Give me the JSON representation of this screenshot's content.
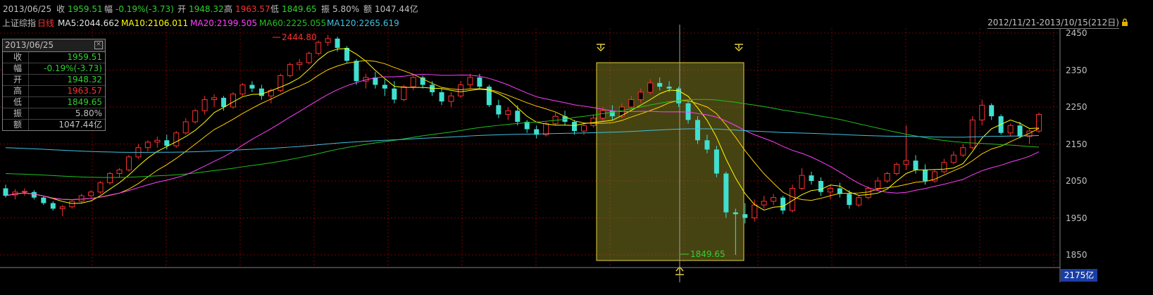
{
  "header": {
    "date": "2013/06/25",
    "close_label": "收",
    "close_value": "1959.51",
    "change_label": "幅",
    "change_value": "-0.19%(-3.73)",
    "open_label": "开",
    "open_value": "1948.32",
    "high_label": "高",
    "high_value": "1963.57",
    "low_label": "低",
    "low_value": "1849.65",
    "amp_label": "振",
    "amp_value": "5.80%",
    "amount_label": "额",
    "amount_value": "1047.44亿"
  },
  "indicator_line": {
    "name": "上证综指",
    "period": "日线",
    "ma5": "MA5:2044.662",
    "ma10": "MA10:2106.011",
    "ma20": "MA20:2199.505",
    "ma60": "MA60:2225.055",
    "ma120": "MA120:2265.619",
    "date_range": "2012/11/21-2013/10/15(212日)"
  },
  "info_box": {
    "title": "2013/06/25",
    "rows": [
      {
        "k": "收",
        "v": "1959.51",
        "color": "#30d030"
      },
      {
        "k": "幅",
        "v": "-0.19%(-3.73)",
        "color": "#30d030"
      },
      {
        "k": "开",
        "v": "1948.32",
        "color": "#30d030"
      },
      {
        "k": "高",
        "v": "1963.57",
        "color": "#ff3030"
      },
      {
        "k": "低",
        "v": "1849.65",
        "color": "#30d030"
      },
      {
        "k": "振",
        "v": "5.80%",
        "color": "#c0c0c0"
      },
      {
        "k": "额",
        "v": "1047.44亿",
        "color": "#c0c0c0"
      }
    ]
  },
  "annotations": {
    "high": "2444.80",
    "low": "1849.65",
    "volume": "2175亿"
  },
  "colors": {
    "up": "#ff3030",
    "down": "#40e0d0",
    "ma5": "#ffffff",
    "ma10": "#ffff00",
    "ma20": "#ff40ff",
    "ma60": "#20c020",
    "ma120": "#40c0e0",
    "highlight": "#807a20"
  },
  "chart_data": {
    "type": "candlestick",
    "y_ticks": [
      1850,
      1950,
      2050,
      2150,
      2250,
      2350,
      2450
    ],
    "ylim": [
      1800,
      2480
    ],
    "candles_ohlc": [
      [
        2030,
        2040,
        2005,
        2010
      ],
      [
        2012,
        2028,
        2000,
        2020
      ],
      [
        2020,
        2030,
        2010,
        2022
      ],
      [
        2020,
        2025,
        2000,
        2005
      ],
      [
        2005,
        2010,
        1985,
        1990
      ],
      [
        1990,
        1995,
        1970,
        1975
      ],
      [
        1975,
        1985,
        1955,
        1980
      ],
      [
        1980,
        2000,
        1975,
        1995
      ],
      [
        1995,
        2015,
        1990,
        2010
      ],
      [
        2010,
        2025,
        2005,
        2020
      ],
      [
        2020,
        2050,
        2015,
        2045
      ],
      [
        2045,
        2075,
        2040,
        2070
      ],
      [
        2070,
        2085,
        2060,
        2080
      ],
      [
        2080,
        2120,
        2075,
        2115
      ],
      [
        2115,
        2150,
        2110,
        2140
      ],
      [
        2140,
        2160,
        2130,
        2155
      ],
      [
        2155,
        2170,
        2140,
        2160
      ],
      [
        2160,
        2175,
        2135,
        2145
      ],
      [
        2145,
        2185,
        2140,
        2180
      ],
      [
        2180,
        2220,
        2175,
        2210
      ],
      [
        2210,
        2245,
        2205,
        2240
      ],
      [
        2240,
        2280,
        2230,
        2270
      ],
      [
        2270,
        2285,
        2250,
        2275
      ],
      [
        2275,
        2280,
        2240,
        2250
      ],
      [
        2250,
        2290,
        2245,
        2285
      ],
      [
        2285,
        2315,
        2280,
        2310
      ],
      [
        2310,
        2320,
        2290,
        2300
      ],
      [
        2300,
        2310,
        2270,
        2280
      ],
      [
        2280,
        2300,
        2260,
        2295
      ],
      [
        2295,
        2340,
        2290,
        2335
      ],
      [
        2335,
        2370,
        2330,
        2365
      ],
      [
        2365,
        2380,
        2350,
        2370
      ],
      [
        2370,
        2400,
        2365,
        2395
      ],
      [
        2395,
        2430,
        2390,
        2425
      ],
      [
        2425,
        2445,
        2415,
        2435
      ],
      [
        2435,
        2440,
        2400,
        2410
      ],
      [
        2410,
        2415,
        2370,
        2375
      ],
      [
        2375,
        2380,
        2310,
        2320
      ],
      [
        2320,
        2340,
        2300,
        2330
      ],
      [
        2330,
        2345,
        2300,
        2310
      ],
      [
        2310,
        2325,
        2280,
        2300
      ],
      [
        2300,
        2320,
        2260,
        2270
      ],
      [
        2270,
        2310,
        2265,
        2305
      ],
      [
        2305,
        2340,
        2295,
        2330
      ],
      [
        2330,
        2335,
        2300,
        2310
      ],
      [
        2310,
        2320,
        2280,
        2290
      ],
      [
        2290,
        2300,
        2255,
        2265
      ],
      [
        2265,
        2290,
        2250,
        2280
      ],
      [
        2280,
        2320,
        2275,
        2310
      ],
      [
        2310,
        2340,
        2300,
        2330
      ],
      [
        2330,
        2340,
        2300,
        2305
      ],
      [
        2305,
        2310,
        2250,
        2255
      ],
      [
        2255,
        2270,
        2220,
        2230
      ],
      [
        2230,
        2250,
        2215,
        2240
      ],
      [
        2240,
        2255,
        2200,
        2210
      ],
      [
        2210,
        2215,
        2180,
        2190
      ],
      [
        2190,
        2200,
        2165,
        2175
      ],
      [
        2175,
        2210,
        2170,
        2205
      ],
      [
        2205,
        2235,
        2200,
        2225
      ],
      [
        2225,
        2240,
        2200,
        2210
      ],
      [
        2210,
        2215,
        2175,
        2185
      ],
      [
        2185,
        2205,
        2175,
        2200
      ],
      [
        2200,
        2230,
        2195,
        2220
      ],
      [
        2220,
        2250,
        2210,
        2240
      ],
      [
        2240,
        2255,
        2215,
        2225
      ],
      [
        2225,
        2260,
        2220,
        2250
      ],
      [
        2250,
        2280,
        2245,
        2270
      ],
      [
        2270,
        2300,
        2260,
        2290
      ],
      [
        2290,
        2325,
        2285,
        2315
      ],
      [
        2315,
        2330,
        2295,
        2305
      ],
      [
        2305,
        2320,
        2290,
        2300
      ],
      [
        2300,
        2305,
        2250,
        2260
      ],
      [
        2260,
        2265,
        2205,
        2215
      ],
      [
        2215,
        2225,
        2150,
        2160
      ],
      [
        2160,
        2175,
        2125,
        2135
      ],
      [
        2135,
        2145,
        2060,
        2070
      ],
      [
        2070,
        2075,
        1950,
        1965
      ],
      [
        1965,
        1975,
        1850,
        1960
      ],
      [
        1960,
        1990,
        1935,
        1950
      ],
      [
        1950,
        2000,
        1940,
        1985
      ],
      [
        1985,
        2010,
        1975,
        1995
      ],
      [
        1995,
        2015,
        1985,
        2005
      ],
      [
        2005,
        2010,
        1960,
        1970
      ],
      [
        1970,
        2040,
        1965,
        2030
      ],
      [
        2030,
        2085,
        2025,
        2065
      ],
      [
        2065,
        2075,
        2040,
        2050
      ],
      [
        2050,
        2060,
        2010,
        2020
      ],
      [
        2020,
        2040,
        2000,
        2030
      ],
      [
        2030,
        2045,
        2005,
        2015
      ],
      [
        2015,
        2025,
        1975,
        1985
      ],
      [
        1985,
        2010,
        1980,
        2005
      ],
      [
        2005,
        2035,
        2000,
        2030
      ],
      [
        2030,
        2060,
        2025,
        2050
      ],
      [
        2050,
        2075,
        2045,
        2070
      ],
      [
        2070,
        2100,
        2065,
        2095
      ],
      [
        2095,
        2200,
        2080,
        2105
      ],
      [
        2105,
        2120,
        2070,
        2080
      ],
      [
        2080,
        2095,
        2040,
        2050
      ],
      [
        2050,
        2080,
        2045,
        2075
      ],
      [
        2075,
        2110,
        2070,
        2100
      ],
      [
        2100,
        2130,
        2095,
        2120
      ],
      [
        2120,
        2150,
        2115,
        2140
      ],
      [
        2140,
        2225,
        2135,
        2215
      ],
      [
        2215,
        2270,
        2200,
        2255
      ],
      [
        2255,
        2260,
        2215,
        2225
      ],
      [
        2225,
        2230,
        2175,
        2180
      ],
      [
        2180,
        2205,
        2170,
        2200
      ],
      [
        2200,
        2210,
        2165,
        2170
      ],
      [
        2170,
        2190,
        2150,
        2185
      ],
      [
        2185,
        2235,
        2180,
        2230
      ]
    ],
    "ma_levels_visible": {
      "ma60_start": 2070,
      "ma120_start": 2140
    }
  }
}
